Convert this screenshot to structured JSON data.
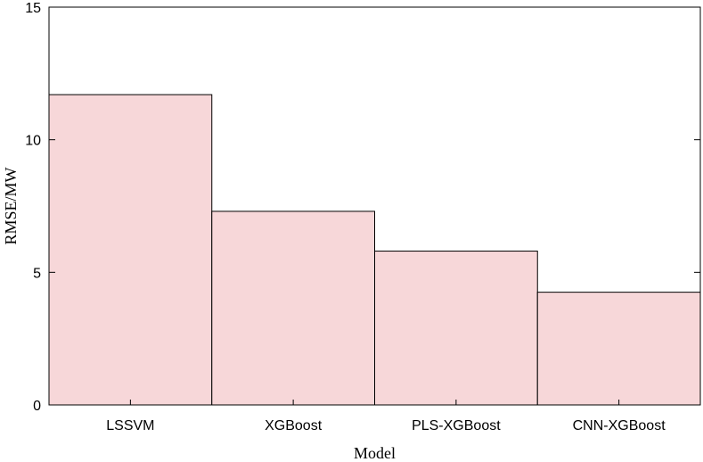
{
  "chart_data": {
    "type": "bar",
    "title": "",
    "xlabel": "Model",
    "ylabel": "RMSE/MW",
    "categories": [
      "LSSVM",
      "XGBoost",
      "PLS-XGBoost",
      "CNN-XGBoost"
    ],
    "values": [
      11.7,
      7.3,
      5.8,
      4.25
    ],
    "ylim": [
      0,
      15
    ],
    "yticks": [
      "0",
      "5",
      "10",
      "15"
    ],
    "grid": false,
    "legend": "none",
    "bar_color": "#f7d7d9",
    "bar_edge_color": "#000000"
  }
}
